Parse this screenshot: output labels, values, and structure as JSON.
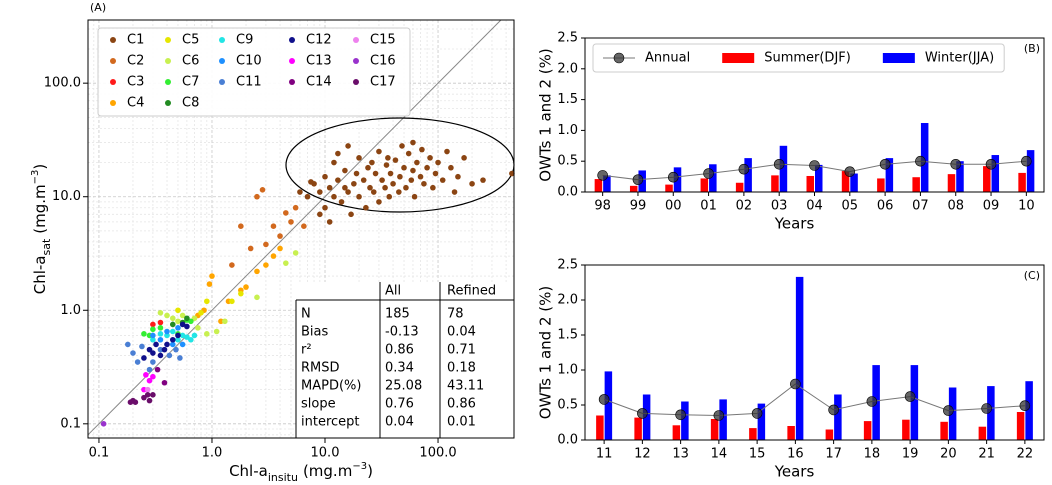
{
  "chart_data": [
    {
      "type": "scatter",
      "panel_label": "(A)",
      "log_scale": true,
      "grid": true,
      "minor_grid": true,
      "one_to_one_line": true,
      "xlabel": {
        "text": "Chl-a",
        "sub": "insitu",
        "unit": "(mg.m",
        "sup": "−3",
        "end": ")"
      },
      "ylabel": {
        "text": "Chl-a",
        "sub": "sat",
        "unit": "(mg.m",
        "sup": "−3",
        "end": ")"
      },
      "xlim": [
        0.08,
        470
      ],
      "ylim": [
        0.075,
        360
      ],
      "xticks": [
        0.1,
        {
          "value": 1,
          "label": "1.0"
        },
        {
          "value": 10,
          "label": "10.0"
        },
        {
          "value": 100,
          "label": "100.0"
        }
      ],
      "yticks": [
        0.1,
        {
          "value": 1,
          "label": "1.0"
        },
        {
          "value": 10,
          "label": "10.0"
        },
        {
          "value": 100,
          "label": "100.0"
        }
      ],
      "legend": "upper left",
      "legend_columns": 5,
      "series": [
        {
          "name": "C1",
          "color": "#8b4513",
          "x": [
            8,
            9,
            10,
            10,
            11,
            12,
            12,
            13,
            14,
            15,
            15,
            16,
            17,
            18,
            19,
            20,
            20,
            22,
            23,
            24,
            25,
            27,
            28,
            30,
            30,
            32,
            34,
            35,
            37,
            38,
            40,
            42,
            45,
            46,
            50,
            52,
            55,
            58,
            60,
            62,
            65,
            70,
            72,
            75,
            80,
            85,
            90,
            95,
            100,
            110,
            120,
            130,
            140,
            150,
            170,
            200,
            250,
            9,
            11,
            16,
            13,
            7,
            6,
            7.5,
            60,
            48,
            36,
            26,
            450
          ],
          "y": [
            13,
            11,
            15,
            8,
            12,
            10,
            20,
            14,
            9,
            12,
            17,
            11,
            7,
            13,
            16,
            10,
            22,
            14,
            8,
            18,
            12,
            11,
            16,
            9,
            25,
            14,
            12,
            19,
            10,
            16,
            13,
            21,
            11,
            15,
            18,
            12,
            24,
            14,
            17,
            10,
            20,
            15,
            26,
            13,
            18,
            22,
            12,
            16,
            20,
            14,
            25,
            18,
            11,
            15,
            22,
            13,
            14,
            7,
            6,
            28,
            24,
            10,
            11,
            13.5,
            30,
            28,
            22,
            20,
            16
          ]
        },
        {
          "name": "C2",
          "color": "#d2691e",
          "x": [
            2.5,
            2.8,
            3.5,
            4.5,
            5,
            3,
            4,
            6.5,
            1.8,
            2.2,
            1.5,
            5.5
          ],
          "y": [
            10,
            11.5,
            5.5,
            7.2,
            6,
            3.8,
            4.5,
            5.5,
            5.5,
            3.5,
            2.5,
            8
          ]
        },
        {
          "name": "C3",
          "color": "#ff1a1a",
          "x": [
            0.3,
            0.35
          ],
          "y": [
            0.75,
            0.78
          ]
        },
        {
          "name": "C4",
          "color": "#ffa500",
          "x": [
            0.95,
            1,
            1.4,
            1.8,
            2,
            2.5,
            3,
            3.5,
            1.2,
            0.85,
            0.75,
            4
          ],
          "y": [
            1.7,
            2,
            1.2,
            1.5,
            1.6,
            2.2,
            2.5,
            3,
            0.8,
            1,
            0.9,
            3.5
          ]
        },
        {
          "name": "C5",
          "color": "#e6e600",
          "x": [
            0.5,
            0.8,
            1.5,
            1.8,
            0.9
          ],
          "y": [
            1,
            0.95,
            1.2,
            1.4,
            1.2
          ]
        },
        {
          "name": "C6",
          "color": "#c8f050",
          "x": [
            0.35,
            0.4,
            0.45,
            0.5,
            0.55,
            0.7,
            0.75,
            0.9,
            1.1,
            1.3,
            5.5,
            4.5,
            2.5
          ],
          "y": [
            0.95,
            0.9,
            0.85,
            0.8,
            0.9,
            0.85,
            0.7,
            0.62,
            0.65,
            0.8,
            3.2,
            2.6,
            1.3
          ]
        },
        {
          "name": "C7",
          "color": "#33ee33",
          "x": [
            0.25,
            0.3,
            0.35,
            0.28,
            0.5,
            0.6,
            0.65
          ],
          "y": [
            0.62,
            0.68,
            0.7,
            0.6,
            0.62,
            0.82,
            0.8
          ]
        },
        {
          "name": "C8",
          "color": "#228b22",
          "x": [
            0.45,
            0.55,
            0.6
          ],
          "y": [
            0.75,
            0.78,
            0.85
          ]
        },
        {
          "name": "C9",
          "color": "#22e5e5",
          "x": [
            0.3,
            0.35,
            0.4,
            0.45,
            0.5,
            0.55,
            0.6,
            0.65,
            0.7
          ],
          "y": [
            0.55,
            0.62,
            0.6,
            0.65,
            0.55,
            0.6,
            0.58,
            0.55,
            0.6
          ]
        },
        {
          "name": "C10",
          "color": "#1e90ff",
          "x": [
            0.3,
            0.35,
            0.4,
            0.45,
            0.55,
            0.5
          ],
          "y": [
            0.6,
            0.55,
            0.65,
            0.5,
            0.5,
            0.7
          ]
        },
        {
          "name": "C11",
          "color": "#4a7fd4",
          "x": [
            0.18,
            0.2,
            0.22,
            0.24,
            0.28,
            0.3,
            0.35,
            0.42,
            0.48,
            0.52
          ],
          "y": [
            0.5,
            0.42,
            0.35,
            0.48,
            0.3,
            0.35,
            0.45,
            0.4,
            0.45,
            0.38
          ]
        },
        {
          "name": "C12",
          "color": "#10108b",
          "x": [
            0.25,
            0.3,
            0.35,
            0.28,
            0.4,
            0.45,
            0.32,
            0.38,
            0.5,
            0.55,
            0.6
          ],
          "y": [
            0.38,
            0.42,
            0.4,
            0.45,
            0.5,
            0.55,
            0.5,
            0.45,
            0.6,
            0.75,
            0.72
          ]
        },
        {
          "name": "C13",
          "color": "#ff00ff",
          "x": [
            0.25,
            0.28,
            0.3,
            0.26
          ],
          "y": [
            0.2,
            0.24,
            0.26,
            0.27
          ]
        },
        {
          "name": "C14",
          "color": "#800080",
          "x": [
            0.38,
            0.33
          ],
          "y": [
            0.23,
            0.3
          ]
        },
        {
          "name": "C15",
          "color": "#ee82ee",
          "x": [
            0.27
          ],
          "y": [
            0.2
          ]
        },
        {
          "name": "C16",
          "color": "#9932cc",
          "x": [
            0.11
          ],
          "y": [
            0.1
          ]
        },
        {
          "name": "C17",
          "color": "#6a0d6a",
          "x": [
            0.19,
            0.2,
            0.21,
            0.25,
            0.28,
            0.3,
            0.27
          ],
          "y": [
            0.155,
            0.16,
            0.155,
            0.17,
            0.16,
            0.18,
            0.18
          ]
        }
      ],
      "table": {
        "columns": [
          "All",
          "Refined"
        ],
        "rows": [
          {
            "label": "N",
            "values": [
              185,
              78
            ]
          },
          {
            "label": "Bias",
            "values": [
              -0.13,
              0.04
            ]
          },
          {
            "label": "r²",
            "values": [
              0.86,
              0.71
            ]
          },
          {
            "label": "RMSD",
            "values": [
              0.34,
              0.18
            ]
          },
          {
            "label": "MAPD(%)",
            "values": [
              25.08,
              43.11
            ]
          },
          {
            "label": "slope",
            "values": [
              0.76,
              0.86
            ]
          },
          {
            "label": "intercept",
            "values": [
              0.04,
              0.01
            ]
          }
        ]
      }
    },
    {
      "type": "bar",
      "panel_label": "(B)",
      "xlabel": "Years",
      "ylabel": "OWTs 1 and 2 (%)",
      "categories": [
        "98",
        "99",
        "00",
        "01",
        "02",
        "03",
        "04",
        "05",
        "06",
        "07",
        "08",
        "09",
        "10"
      ],
      "ylim": [
        0,
        2.5
      ],
      "yticks": [
        {
          "value": 0,
          "label": "0.0"
        },
        0.5,
        {
          "value": 1,
          "label": "1.0"
        },
        1.5,
        {
          "value": 2,
          "label": "2.0"
        },
        2.5
      ],
      "legend": "upper center",
      "series": [
        {
          "name": "Annual",
          "kind": "line",
          "color": "#333333",
          "values": [
            0.27,
            0.2,
            0.24,
            0.3,
            0.37,
            0.45,
            0.43,
            0.33,
            0.45,
            0.5,
            0.45,
            0.45,
            0.5
          ]
        },
        {
          "name": "Summer(DJF)",
          "color": "#ff0000",
          "values": [
            0.21,
            0.1,
            0.12,
            0.22,
            0.15,
            0.27,
            0.26,
            0.34,
            0.22,
            0.24,
            0.29,
            0.42,
            0.31
          ]
        },
        {
          "name": "Winter(JJA)",
          "color": "#0000ff",
          "values": [
            0.27,
            0.35,
            0.4,
            0.45,
            0.55,
            0.75,
            0.44,
            0.3,
            0.55,
            1.12,
            0.5,
            0.6,
            0.68
          ]
        }
      ]
    },
    {
      "type": "bar",
      "panel_label": "(C)",
      "xlabel": "Years",
      "ylabel": "OWTs 1 and 2 (%)",
      "categories": [
        "11",
        "12",
        "13",
        "14",
        "15",
        "16",
        "17",
        "18",
        "19",
        "20",
        "21",
        "22"
      ],
      "ylim": [
        0,
        2.5
      ],
      "yticks": [
        {
          "value": 0,
          "label": "0.0"
        },
        0.5,
        {
          "value": 1,
          "label": "1.0"
        },
        1.5,
        {
          "value": 2,
          "label": "2.0"
        },
        2.5
      ],
      "series": [
        {
          "name": "Annual",
          "kind": "line",
          "color": "#333333",
          "values": [
            0.58,
            0.38,
            0.36,
            0.35,
            0.38,
            0.8,
            0.43,
            0.55,
            0.62,
            0.42,
            0.45,
            0.49
          ]
        },
        {
          "name": "Summer(DJF)",
          "color": "#ff0000",
          "values": [
            0.35,
            0.32,
            0.21,
            0.3,
            0.17,
            0.2,
            0.15,
            0.27,
            0.29,
            0.26,
            0.19,
            0.4
          ]
        },
        {
          "name": "Winter(JJA)",
          "color": "#0000ff",
          "values": [
            0.98,
            0.65,
            0.55,
            0.58,
            0.52,
            2.33,
            0.65,
            1.07,
            1.07,
            0.75,
            0.77,
            0.84
          ]
        }
      ]
    }
  ]
}
